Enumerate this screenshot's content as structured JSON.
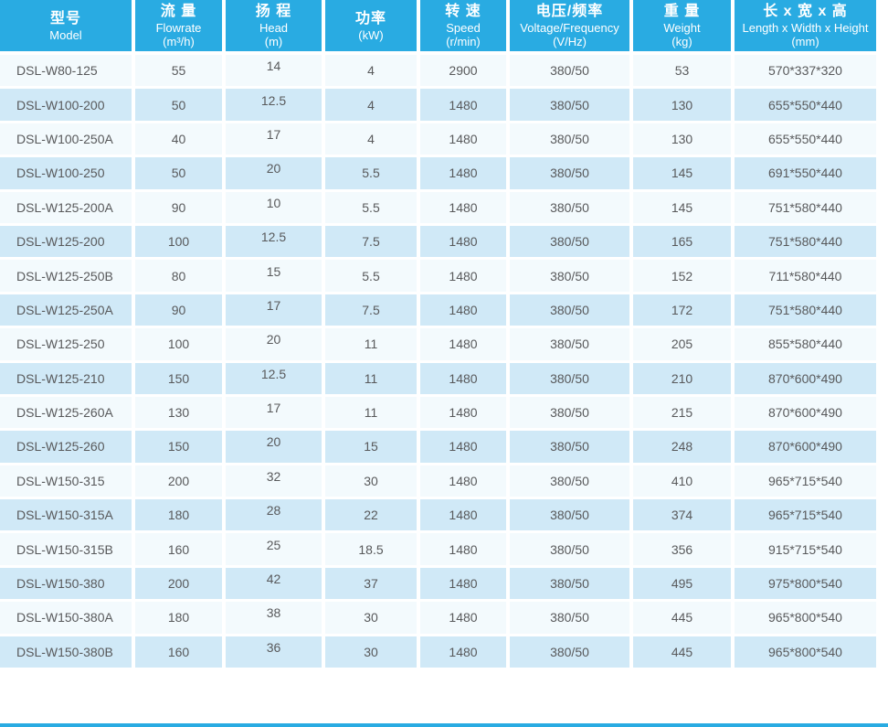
{
  "colors": {
    "header_bg": "#29abe2",
    "header_text": "#ffffff",
    "row_light": "#f3fafd",
    "row_shaded": "#d0e9f7",
    "cell_text": "#58595b",
    "accent_bar": "#29abe2"
  },
  "table": {
    "columns": [
      {
        "key": "model",
        "zh": "型号",
        "en": "Model",
        "unit": ""
      },
      {
        "key": "flowrate",
        "zh": "流 量",
        "en": "Flowrate",
        "unit": "(m³/h)"
      },
      {
        "key": "head",
        "zh": "扬 程",
        "en": "Head",
        "unit": "(m)"
      },
      {
        "key": "power",
        "zh": "功率",
        "en": "",
        "unit": "(kW)"
      },
      {
        "key": "speed",
        "zh": "转 速",
        "en": "Speed",
        "unit": "(r/min)"
      },
      {
        "key": "voltage-frequency",
        "zh": "电压/频率",
        "en": "Voltage/Frequency",
        "unit": "(V/Hz)"
      },
      {
        "key": "weight",
        "zh": "重 量",
        "en": "Weight",
        "unit": "(kg)"
      },
      {
        "key": "dimensions",
        "zh": "长 x 宽 x 高",
        "en": "Length x Width x Height",
        "unit": "(mm)"
      }
    ],
    "rows": [
      [
        "DSL-W80-125",
        "55",
        "14",
        "4",
        "2900",
        "380/50",
        "53",
        "570*337*320"
      ],
      [
        "DSL-W100-200",
        "50",
        "12.5",
        "4",
        "1480",
        "380/50",
        "130",
        "655*550*440"
      ],
      [
        "DSL-W100-250A",
        "40",
        "17",
        "4",
        "1480",
        "380/50",
        "130",
        "655*550*440"
      ],
      [
        "DSL-W100-250",
        "50",
        "20",
        "5.5",
        "1480",
        "380/50",
        "145",
        "691*550*440"
      ],
      [
        "DSL-W125-200A",
        "90",
        "10",
        "5.5",
        "1480",
        "380/50",
        "145",
        "751*580*440"
      ],
      [
        "DSL-W125-200",
        "100",
        "12.5",
        "7.5",
        "1480",
        "380/50",
        "165",
        "751*580*440"
      ],
      [
        "DSL-W125-250B",
        "80",
        "15",
        "5.5",
        "1480",
        "380/50",
        "152",
        "711*580*440"
      ],
      [
        "DSL-W125-250A",
        "90",
        "17",
        "7.5",
        "1480",
        "380/50",
        "172",
        "751*580*440"
      ],
      [
        "DSL-W125-250",
        "100",
        "20",
        "11",
        "1480",
        "380/50",
        "205",
        "855*580*440"
      ],
      [
        "DSL-W125-210",
        "150",
        "12.5",
        "11",
        "1480",
        "380/50",
        "210",
        "870*600*490"
      ],
      [
        "DSL-W125-260A",
        "130",
        "17",
        "11",
        "1480",
        "380/50",
        "215",
        "870*600*490"
      ],
      [
        "DSL-W125-260",
        "150",
        "20",
        "15",
        "1480",
        "380/50",
        "248",
        "870*600*490"
      ],
      [
        "DSL-W150-315",
        "200",
        "32",
        "30",
        "1480",
        "380/50",
        "410",
        "965*715*540"
      ],
      [
        "DSL-W150-315A",
        "180",
        "28",
        "22",
        "1480",
        "380/50",
        "374",
        "965*715*540"
      ],
      [
        "DSL-W150-315B",
        "160",
        "25",
        "18.5",
        "1480",
        "380/50",
        "356",
        "915*715*540"
      ],
      [
        "DSL-W150-380",
        "200",
        "42",
        "37",
        "1480",
        "380/50",
        "495",
        "975*800*540"
      ],
      [
        "DSL-W150-380A",
        "180",
        "38",
        "30",
        "1480",
        "380/50",
        "445",
        "965*800*540"
      ],
      [
        "DSL-W150-380B",
        "160",
        "36",
        "30",
        "1480",
        "380/50",
        "445",
        "965*800*540"
      ]
    ]
  }
}
